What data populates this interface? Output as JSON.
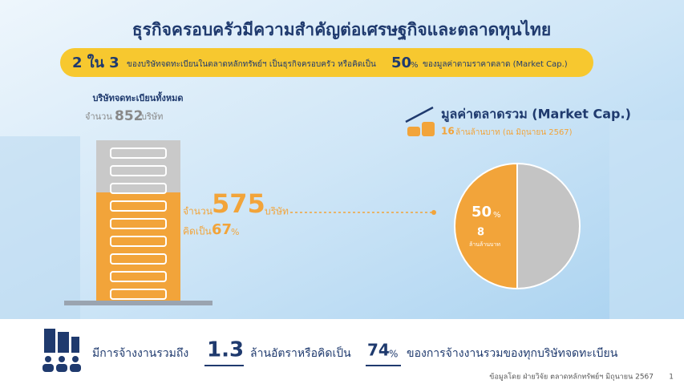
{
  "header": {
    "title": "ธุรกิจครอบครัวมีความสำคัญต่อเศรษฐกิจและตลาดทุนไทย"
  },
  "banner": {
    "ratio": "2 ใน 3",
    "text1": "ของบริษัทจดทะเบียนในตลาดหลักทรัพย์ฯ เป็นธุรกิจครอบครัว หรือคิดเป็น",
    "share": "50",
    "percent_sign": "%",
    "text2": "ของมูลค่าตามราคาตลาด (Market Cap.)"
  },
  "listed": {
    "label": "บริษัทจดทะเบียนทั้งหมด",
    "count_prefix": "จำนวน",
    "total": 852,
    "unit": "บริษัท",
    "family_prefix": "จำนวน",
    "family": 575,
    "family_unit": "บริษัท",
    "share_prefix": "คิดเป็น",
    "share": 67,
    "share_sign": "%"
  },
  "market_cap": {
    "title": "มูลค่าตลาดรวม (Market Cap.)",
    "total": 16,
    "unit": "ล้านล้านบาท (ณ มิถุนายน 2567)"
  },
  "pie": {
    "slices": [
      {
        "value": 50,
        "color": "#f2a43a",
        "amount": 8
      },
      {
        "value": 50,
        "color": "#c4c4c4"
      }
    ],
    "percent_sign": "%",
    "unit": "ล้านล้านบาท"
  },
  "employment": {
    "text1": "มีการจ้างงานรวมถึง",
    "amount": "1.3",
    "text2": "ล้านอัตราหรือคิดเป็น",
    "share": "74",
    "percent_sign": "%",
    "text3": "ของการจ้างงานรวมของทุกบริษัทจดทะเบียน"
  },
  "footer": {
    "source": "ข้อมูลโดย ฝ่ายวิจัย ตลาดหลักทรัพย์ฯ มิถุนายน 2567",
    "page": "1"
  }
}
